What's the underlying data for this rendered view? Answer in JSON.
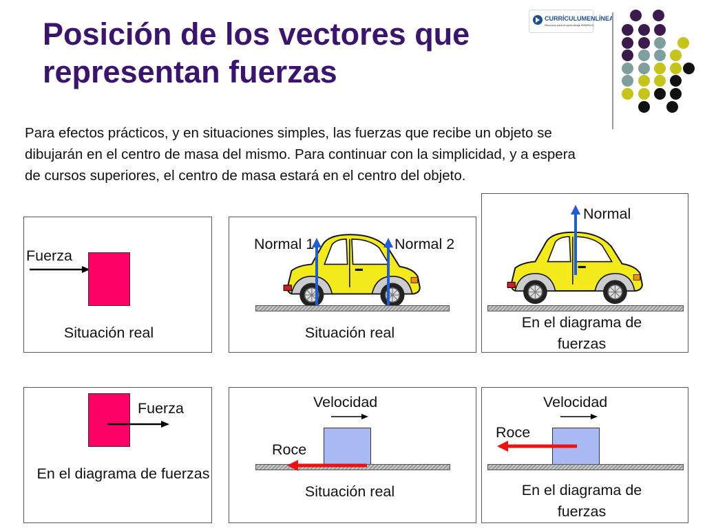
{
  "slide": {
    "title_line1": "Posición de los vectores que",
    "title_line2": "representan fuerzas",
    "intro": "Para efectos prácticos, y en situaciones simples, las fuerzas que recibe un objeto se dibujarán en el centro de masa del mismo. Para continuar con la simplicidad, y a espera de cursos superiores, el centro de masa estará en el centro del objeto."
  },
  "logo": {
    "text": "CURRÍCULUMENLÍNEA",
    "subtext": "Recursos para el aprendizaje MINEDUC"
  },
  "panels": {
    "p1": {
      "label": "Fuerza",
      "caption": "Situación real"
    },
    "p2": {
      "label_left": "Normal 1",
      "label_right": "Normal 2",
      "caption": "Situación real"
    },
    "p3": {
      "label": "Normal",
      "caption": "En el diagrama de fuerzas"
    },
    "p4": {
      "label": "Fuerza",
      "caption": "En el diagrama de fuerzas"
    },
    "p5": {
      "velocity": "Velocidad",
      "friction": "Roce",
      "caption": "Situación real"
    },
    "p6": {
      "velocity": "Velocidad",
      "friction": "Roce",
      "caption": "En el diagrama de fuerzas"
    }
  },
  "colors": {
    "title": "#3b1470",
    "force_box": "#ff0066",
    "block": "#a9b9f3",
    "normal_arrow": "#1f5fd6",
    "friction_arrow": "#ee1111",
    "car": "#f2ea1a",
    "dot_purple": "#3b1a4d",
    "dot_teal": "#7f9f9f",
    "dot_lime": "#c4c41a",
    "dot_black": "#111111"
  }
}
